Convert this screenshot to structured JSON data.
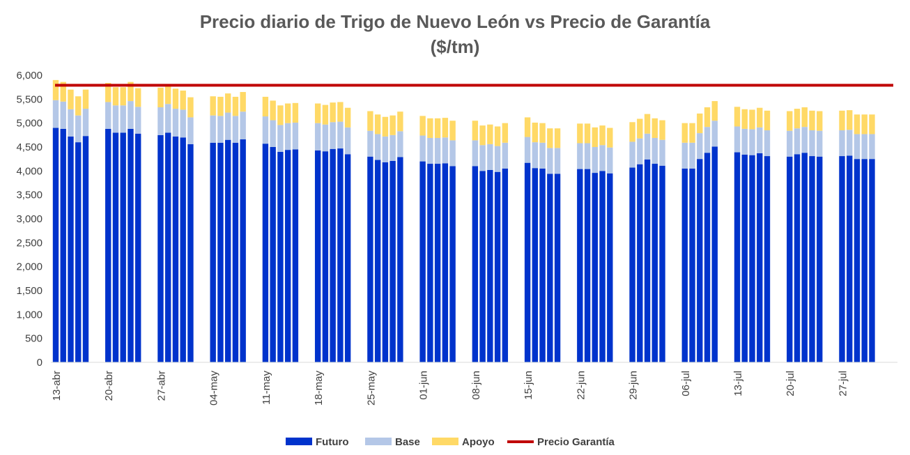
{
  "chart_data": {
    "type": "bar",
    "stacked": true,
    "title": "Precio diario de Trigo de Nuevo León vs Precio de Garantía",
    "subtitle": "($/tm)",
    "ylim": [
      0,
      6000
    ],
    "yticks": [
      "0",
      "500",
      "1,000",
      "1,500",
      "2,000",
      "2,500",
      "3,000",
      "3,500",
      "4,000",
      "4,500",
      "5,000",
      "5,500",
      "6,000"
    ],
    "xtick_labels": [
      "13-abr",
      "20-abr",
      "27-abr",
      "04-may",
      "11-may",
      "18-may",
      "25-may",
      "01-jun",
      "08-jun",
      "15-jun",
      "22-jun",
      "29-jun",
      "06-jul",
      "13-jul",
      "20-jul",
      "27-jul"
    ],
    "weeks": [
      {
        "label": "13-abr",
        "futuro": [
          4900,
          4880,
          4720,
          4600,
          4730
        ],
        "base": [
          580,
          570,
          570,
          560,
          570
        ],
        "apoyo": [
          420,
          410,
          410,
          400,
          400
        ]
      },
      {
        "label": "20-abr",
        "futuro": [
          4880,
          4800,
          4800,
          4880,
          4780
        ],
        "base": [
          560,
          570,
          570,
          580,
          560
        ],
        "apoyo": [
          400,
          380,
          380,
          400,
          390
        ]
      },
      {
        "label": "27-abr",
        "futuro": [
          4750,
          4800,
          4720,
          4700,
          4560
        ],
        "base": [
          580,
          600,
          580,
          580,
          560
        ],
        "apoyo": [
          410,
          400,
          420,
          400,
          420
        ]
      },
      {
        "label": "04-may",
        "futuro": [
          4590,
          4590,
          4650,
          4590,
          4660
        ],
        "base": [
          570,
          560,
          570,
          560,
          580
        ],
        "apoyo": [
          400,
          400,
          400,
          400,
          410
        ]
      },
      {
        "label": "11-may",
        "futuro": [
          4570,
          4500,
          4400,
          4440,
          4450
        ],
        "base": [
          570,
          560,
          560,
          560,
          560
        ],
        "apoyo": [
          410,
          410,
          410,
          410,
          410
        ]
      },
      {
        "label": "18-may",
        "futuro": [
          4430,
          4410,
          4460,
          4470,
          4350
        ],
        "base": [
          570,
          560,
          560,
          560,
          560
        ],
        "apoyo": [
          410,
          410,
          410,
          410,
          410
        ]
      },
      {
        "label": "25-may",
        "futuro": [
          4300,
          4230,
          4180,
          4210,
          4290
        ],
        "base": [
          540,
          540,
          540,
          540,
          540
        ],
        "apoyo": [
          410,
          410,
          410,
          410,
          410
        ]
      },
      {
        "label": "01-jun",
        "futuro": [
          4200,
          4150,
          4150,
          4160,
          4100
        ],
        "base": [
          540,
          540,
          540,
          540,
          540
        ],
        "apoyo": [
          410,
          410,
          410,
          410,
          410
        ]
      },
      {
        "label": "08-jun",
        "futuro": [
          4100,
          4000,
          4020,
          3980,
          4050
        ],
        "base": [
          540,
          540,
          540,
          540,
          540
        ],
        "apoyo": [
          410,
          410,
          410,
          410,
          410
        ]
      },
      {
        "label": "15-jun",
        "futuro": [
          4170,
          4060,
          4050,
          3940,
          3940
        ],
        "base": [
          540,
          540,
          540,
          540,
          540
        ],
        "apoyo": [
          410,
          410,
          410,
          410,
          410
        ]
      },
      {
        "label": "22-jun",
        "futuro": [
          4040,
          4040,
          3960,
          4000,
          3950
        ],
        "base": [
          540,
          540,
          540,
          540,
          540
        ],
        "apoyo": [
          410,
          410,
          410,
          410,
          410
        ]
      },
      {
        "label": "29-jun",
        "futuro": [
          4070,
          4140,
          4240,
          4150,
          4110
        ],
        "base": [
          540,
          540,
          540,
          540,
          540
        ],
        "apoyo": [
          410,
          410,
          410,
          410,
          410
        ]
      },
      {
        "label": "06-jul",
        "futuro": [
          4050,
          4050,
          4250,
          4380,
          4510
        ],
        "base": [
          540,
          540,
          540,
          540,
          540
        ],
        "apoyo": [
          410,
          410,
          410,
          410,
          410
        ]
      },
      {
        "label": "13-jul",
        "futuro": [
          4390,
          4340,
          4330,
          4370,
          4310
        ],
        "base": [
          540,
          540,
          540,
          540,
          540
        ],
        "apoyo": [
          410,
          410,
          410,
          410,
          410
        ]
      },
      {
        "label": "20-jul",
        "futuro": [
          4300,
          4350,
          4380,
          4310,
          4300
        ],
        "base": [
          540,
          540,
          540,
          540,
          540
        ],
        "apoyo": [
          410,
          410,
          410,
          410,
          410
        ]
      },
      {
        "label": "27-jul",
        "futuro": [
          4310,
          4320,
          4250,
          4250,
          4250
        ],
        "base": [
          540,
          540,
          520,
          520,
          520
        ],
        "apoyo": [
          410,
          410,
          410,
          410,
          410
        ]
      }
    ],
    "precio_garantia": 5790,
    "legend": [
      {
        "name": "Futuro",
        "color": "#0033cc",
        "kind": "box"
      },
      {
        "name": "Base",
        "color": "#b4c7e7",
        "kind": "box"
      },
      {
        "name": "Apoyo",
        "color": "#ffd966",
        "kind": "box"
      },
      {
        "name": "Precio Garantía",
        "color": "#c00000",
        "kind": "line"
      }
    ],
    "legend_position": "bottom",
    "grid": false
  }
}
